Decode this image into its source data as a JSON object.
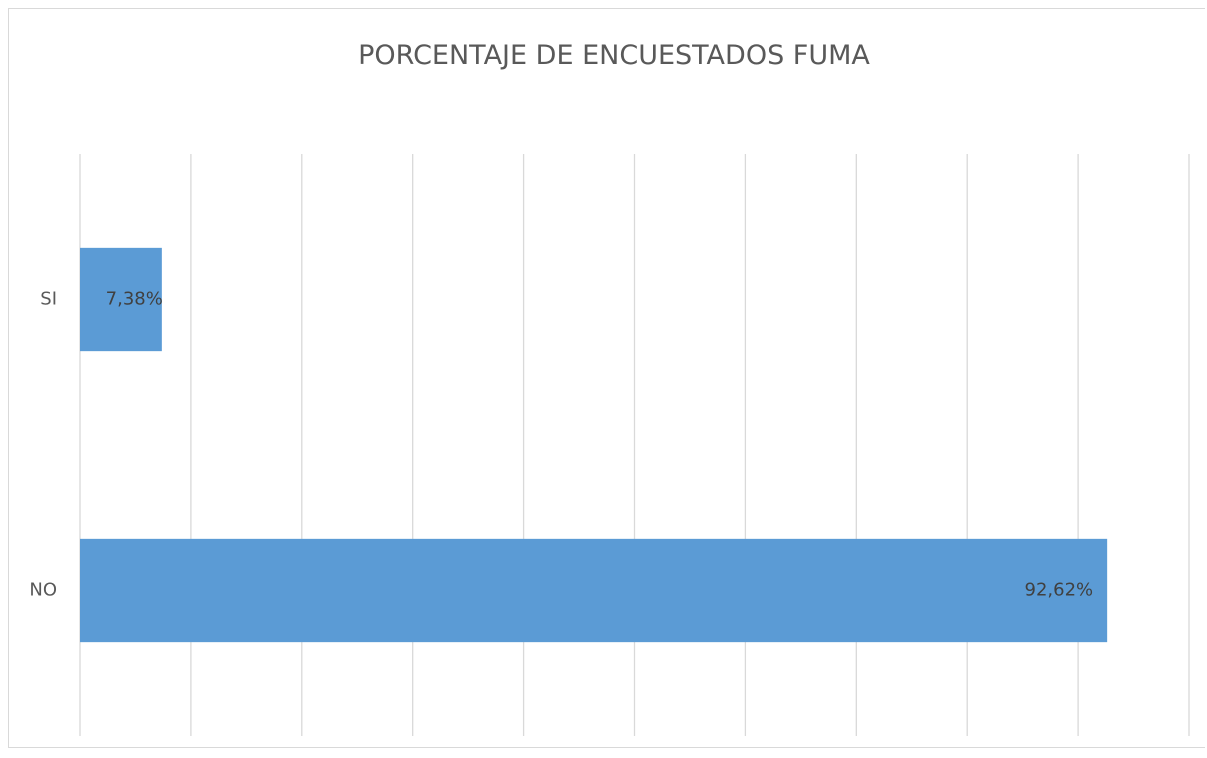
{
  "chart_data": {
    "type": "barh",
    "title": "PORCENTAJE DE ENCUESTADOS FUMA",
    "categories": [
      "SI",
      "NO"
    ],
    "values": [
      7.38,
      92.62
    ],
    "value_labels": [
      "7,38%",
      "92,62%"
    ],
    "color": "#5b9bd5",
    "xlim": [
      0,
      100
    ],
    "xticks": [
      0,
      10,
      20,
      30,
      40,
      50,
      60,
      70,
      80,
      90,
      100
    ],
    "grid": true
  }
}
